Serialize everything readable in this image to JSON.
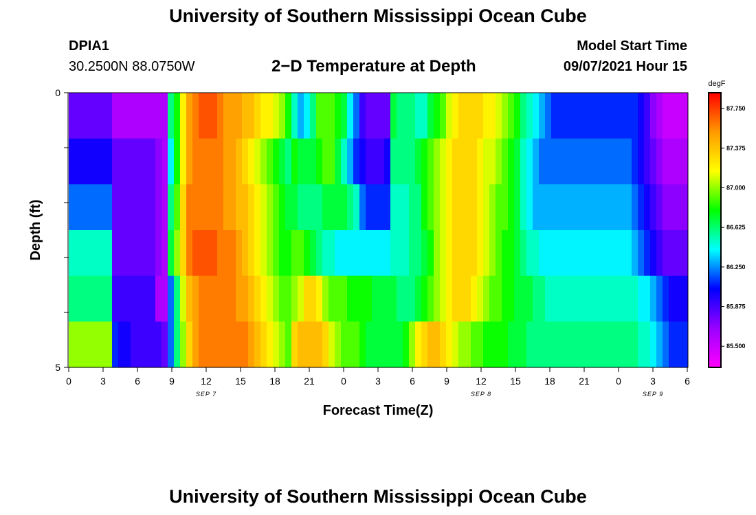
{
  "header": {
    "title": "University of Southern Mississippi Ocean Cube",
    "station": "DPIA1",
    "coords": "30.2500N  88.0750W",
    "subtitle": "2−D Temperature at Depth",
    "model_label": "Model Start Time",
    "model_time": "09/07/2021 Hour 15",
    "footer_title": "University of Southern Mississippi Ocean Cube"
  },
  "chart_data": {
    "type": "heatmap",
    "xlabel": "Forecast Time(Z)",
    "ylabel": "Depth (ft)",
    "colorbar_unit": "degF",
    "colorbar_ticks": [
      "87.750",
      "87.375",
      "87.000",
      "86.625",
      "86.250",
      "85.875",
      "85.500"
    ],
    "colorbar_range": [
      85.3,
      87.9
    ],
    "x_ticks": [
      "0",
      "3",
      "6",
      "9",
      "12",
      "15",
      "18",
      "21",
      "0",
      "3",
      "6",
      "9",
      "12",
      "15",
      "18",
      "21",
      "0",
      "3",
      "6"
    ],
    "date_labels": [
      {
        "label": "SEP 7",
        "hours": 12
      },
      {
        "label": "SEP 8",
        "hours": 36
      },
      {
        "label": "SEP 9",
        "hours": 51
      }
    ],
    "y_ticks": [
      "0",
      "",
      "",
      "",
      "",
      "5"
    ],
    "depth_range_ft": [
      0,
      5
    ],
    "time_range_hours": [
      0,
      54
    ],
    "colors": [
      "#ff00ff",
      "#9900ff",
      "#0000ff",
      "#00ffff",
      "#00ff00",
      "#ffff00",
      "#ff9900",
      "#ff0000"
    ],
    "rows": [
      [
        85.8,
        85.8,
        85.8,
        85.8,
        85.8,
        85.8,
        85.8,
        85.6,
        85.6,
        85.6,
        85.6,
        85.6,
        85.6,
        85.6,
        85.6,
        85.6,
        86.6,
        86.8,
        87.2,
        87.5,
        87.6,
        87.7,
        87.7,
        87.7,
        87.6,
        87.5,
        87.5,
        87.5,
        87.4,
        87.4,
        87.3,
        87.2,
        87.2,
        87.1,
        87.0,
        86.8,
        86.5,
        86.3,
        86.4,
        86.6,
        86.9,
        86.9,
        86.9,
        86.8,
        86.7,
        86.4,
        86.2,
        85.9,
        85.8,
        85.8,
        85.8,
        85.8,
        86.7,
        86.6,
        86.6,
        86.6,
        86.5,
        86.5,
        86.7,
        86.8,
        86.9,
        87.1,
        87.2,
        87.3,
        87.3,
        87.3,
        87.3,
        87.2,
        87.2,
        87.1,
        87.0,
        86.9,
        86.8,
        86.6,
        86.5,
        86.4,
        86.3,
        86.2,
        86.1,
        86.1,
        86.1,
        86.1,
        86.1,
        86.1,
        86.1,
        86.1,
        86.1,
        86.1,
        86.1,
        86.1,
        86.1,
        86.1,
        86.0,
        85.9,
        85.7,
        85.6,
        85.5,
        85.5,
        85.5,
        85.5
      ],
      [
        86.0,
        86.0,
        86.0,
        86.0,
        86.0,
        86.0,
        86.0,
        85.8,
        85.8,
        85.8,
        85.8,
        85.8,
        85.8,
        85.8,
        85.7,
        85.6,
        86.4,
        86.8,
        87.2,
        87.5,
        87.6,
        87.6,
        87.6,
        87.6,
        87.6,
        87.5,
        87.5,
        87.4,
        87.3,
        87.2,
        87.1,
        87.0,
        86.9,
        86.8,
        86.7,
        86.6,
        86.8,
        86.7,
        86.7,
        86.7,
        86.8,
        86.9,
        86.9,
        86.7,
        86.5,
        86.3,
        86.1,
        86.0,
        85.9,
        85.9,
        85.9,
        86.0,
        86.6,
        86.6,
        86.6,
        86.6,
        86.7,
        86.8,
        86.9,
        87.0,
        87.1,
        87.2,
        87.3,
        87.3,
        87.3,
        87.3,
        87.2,
        87.1,
        87.1,
        87.0,
        86.9,
        86.8,
        86.7,
        86.5,
        86.4,
        86.3,
        86.2,
        86.2,
        86.2,
        86.2,
        86.2,
        86.2,
        86.2,
        86.2,
        86.2,
        86.2,
        86.2,
        86.2,
        86.2,
        86.2,
        86.2,
        86.1,
        86.0,
        85.9,
        85.8,
        85.7,
        85.6,
        85.6,
        85.6,
        85.6
      ],
      [
        86.2,
        86.2,
        86.2,
        86.2,
        86.2,
        86.2,
        86.2,
        85.8,
        85.8,
        85.8,
        85.8,
        85.8,
        85.8,
        85.8,
        85.7,
        85.6,
        86.6,
        86.9,
        87.3,
        87.6,
        87.6,
        87.6,
        87.6,
        87.6,
        87.6,
        87.5,
        87.5,
        87.4,
        87.4,
        87.3,
        87.2,
        87.1,
        87.0,
        86.9,
        86.8,
        86.7,
        86.7,
        86.6,
        86.6,
        86.6,
        86.6,
        86.7,
        86.7,
        86.7,
        86.7,
        86.6,
        86.5,
        86.2,
        86.1,
        86.1,
        86.1,
        86.1,
        86.5,
        86.5,
        86.5,
        86.6,
        86.6,
        86.8,
        86.9,
        87.0,
        87.1,
        87.2,
        87.3,
        87.3,
        87.3,
        87.3,
        87.2,
        87.1,
        87.0,
        86.9,
        86.9,
        86.8,
        86.7,
        86.5,
        86.4,
        86.3,
        86.3,
        86.3,
        86.3,
        86.3,
        86.3,
        86.3,
        86.3,
        86.3,
        86.3,
        86.3,
        86.3,
        86.3,
        86.3,
        86.3,
        86.3,
        86.2,
        86.1,
        86.0,
        85.9,
        85.8,
        85.7,
        85.7,
        85.7,
        85.7
      ],
      [
        86.5,
        86.5,
        86.5,
        86.5,
        86.5,
        86.5,
        86.5,
        85.8,
        85.8,
        85.8,
        85.8,
        85.8,
        85.8,
        85.8,
        85.7,
        85.6,
        86.7,
        87.0,
        87.3,
        87.6,
        87.7,
        87.7,
        87.7,
        87.7,
        87.6,
        87.6,
        87.6,
        87.5,
        87.4,
        87.3,
        87.2,
        87.1,
        87.0,
        86.9,
        86.8,
        86.8,
        86.9,
        86.9,
        86.8,
        86.7,
        86.6,
        86.5,
        86.5,
        86.4,
        86.4,
        86.4,
        86.4,
        86.4,
        86.4,
        86.4,
        86.4,
        86.4,
        86.5,
        86.5,
        86.5,
        86.6,
        86.6,
        86.7,
        86.8,
        87.0,
        87.1,
        87.2,
        87.3,
        87.3,
        87.3,
        87.3,
        87.2,
        87.1,
        87.0,
        86.9,
        86.8,
        86.8,
        86.7,
        86.6,
        86.5,
        86.5,
        86.4,
        86.4,
        86.4,
        86.4,
        86.4,
        86.4,
        86.4,
        86.4,
        86.4,
        86.4,
        86.4,
        86.4,
        86.4,
        86.4,
        86.4,
        86.3,
        86.2,
        86.1,
        86.0,
        85.9,
        85.8,
        85.8,
        85.8,
        85.8
      ],
      [
        86.6,
        86.6,
        86.6,
        86.6,
        86.6,
        86.6,
        86.6,
        85.9,
        85.9,
        85.9,
        85.9,
        85.9,
        85.9,
        85.9,
        85.6,
        85.6,
        86.2,
        86.6,
        87.1,
        87.4,
        87.5,
        87.6,
        87.6,
        87.6,
        87.6,
        87.6,
        87.6,
        87.5,
        87.5,
        87.4,
        87.3,
        87.2,
        87.1,
        87.0,
        86.9,
        86.9,
        87.0,
        87.1,
        87.3,
        87.3,
        87.2,
        87.0,
        86.9,
        86.9,
        86.9,
        86.8,
        86.8,
        86.8,
        86.8,
        86.7,
        86.7,
        86.7,
        86.7,
        86.6,
        86.6,
        86.6,
        86.7,
        86.8,
        86.9,
        87.0,
        87.1,
        87.2,
        87.3,
        87.3,
        87.3,
        87.2,
        87.1,
        87.0,
        86.9,
        86.9,
        86.8,
        86.8,
        86.7,
        86.7,
        86.7,
        86.6,
        86.6,
        86.5,
        86.5,
        86.5,
        86.5,
        86.5,
        86.5,
        86.5,
        86.5,
        86.5,
        86.5,
        86.5,
        86.5,
        86.5,
        86.5,
        86.5,
        86.4,
        86.4,
        86.3,
        86.2,
        86.1,
        86.0,
        86.0,
        86.0
      ],
      [
        87.0,
        87.0,
        87.0,
        87.0,
        87.0,
        87.0,
        87.0,
        86.1,
        86.0,
        86.0,
        85.9,
        85.9,
        85.9,
        85.9,
        85.9,
        85.8,
        86.2,
        86.6,
        87.0,
        87.3,
        87.5,
        87.6,
        87.6,
        87.6,
        87.6,
        87.6,
        87.6,
        87.6,
        87.6,
        87.5,
        87.4,
        87.3,
        87.2,
        87.1,
        87.0,
        86.9,
        87.3,
        87.4,
        87.4,
        87.4,
        87.4,
        87.3,
        87.1,
        87.0,
        86.9,
        86.9,
        86.9,
        86.8,
        86.7,
        86.7,
        86.7,
        86.7,
        86.7,
        86.7,
        86.8,
        87.0,
        87.2,
        87.3,
        87.4,
        87.4,
        87.3,
        87.2,
        87.1,
        87.0,
        87.0,
        86.9,
        86.9,
        86.8,
        86.8,
        86.8,
        86.8,
        86.7,
        86.7,
        86.7,
        86.6,
        86.6,
        86.6,
        86.6,
        86.6,
        86.6,
        86.6,
        86.6,
        86.6,
        86.6,
        86.6,
        86.6,
        86.6,
        86.6,
        86.6,
        86.6,
        86.6,
        86.6,
        86.5,
        86.5,
        86.4,
        86.3,
        86.2,
        86.1,
        86.1,
        86.1
      ]
    ]
  }
}
